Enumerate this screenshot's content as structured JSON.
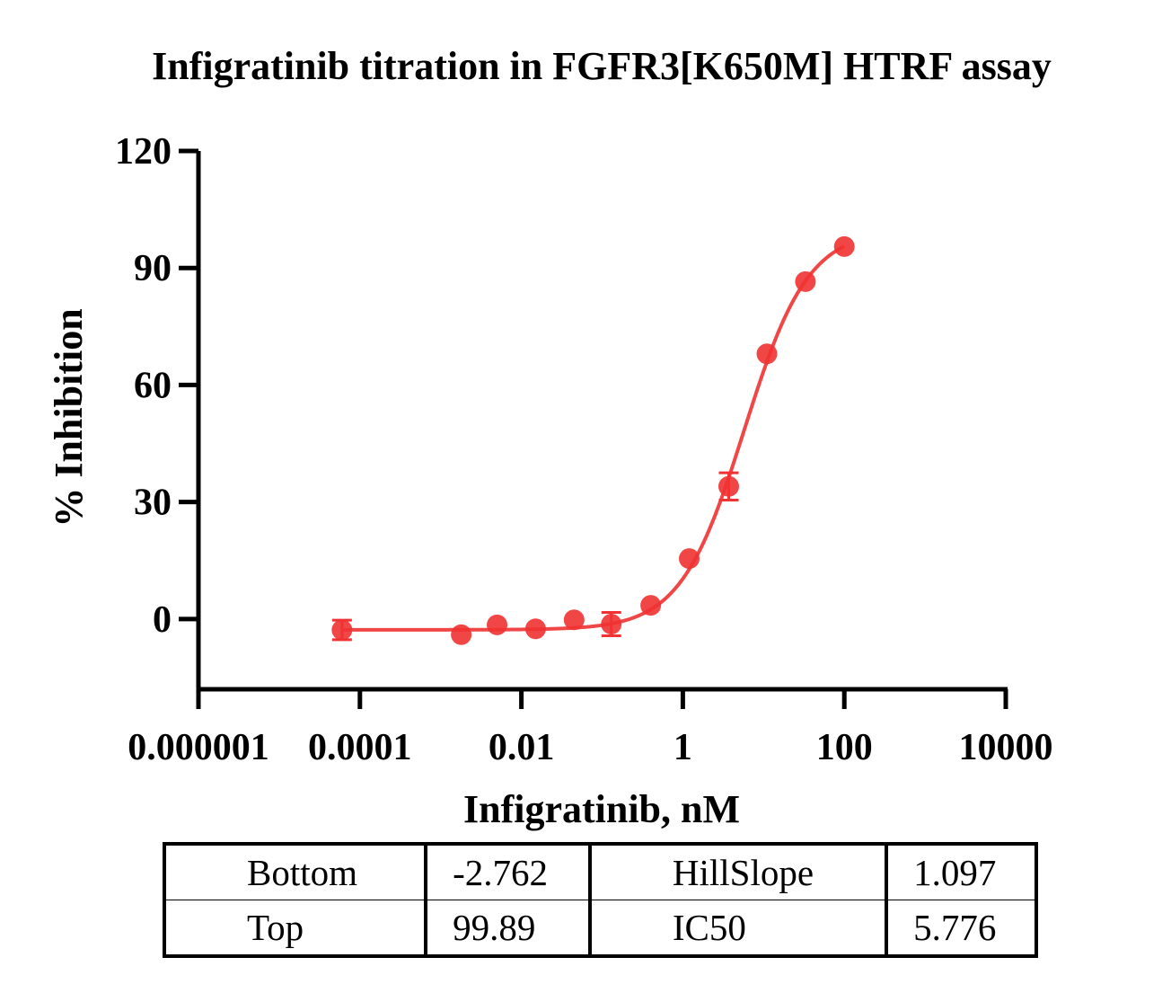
{
  "chart_data": {
    "type": "scatter",
    "title": "Infigratinib titration in FGFR3[K650M] HTRF assay",
    "xlabel": "Infigratinib, nM",
    "ylabel": "% Inhibition",
    "x_scale": "log",
    "xlim": [
      1e-06,
      10000
    ],
    "ylim": [
      -18,
      120
    ],
    "x_ticks": [
      1e-06,
      0.0001,
      0.01,
      1,
      100,
      10000
    ],
    "x_tick_labels": [
      "0.000001",
      "0.0001",
      "0.01",
      "1",
      "100",
      "10000"
    ],
    "y_ticks": [
      0,
      30,
      60,
      90,
      120
    ],
    "y_tick_labels": [
      "0",
      "30",
      "60",
      "90",
      "120"
    ],
    "color": "#f03232",
    "points": [
      {
        "x": 6e-05,
        "y": -2.8,
        "err": 2.5
      },
      {
        "x": 0.0018,
        "y": -4.0,
        "err": 0
      },
      {
        "x": 0.005,
        "y": -1.5,
        "err": 0
      },
      {
        "x": 0.015,
        "y": -2.5,
        "err": 0
      },
      {
        "x": 0.045,
        "y": -0.2,
        "err": 0
      },
      {
        "x": 0.13,
        "y": -1.3,
        "err": 3.0
      },
      {
        "x": 0.4,
        "y": 3.5,
        "err": 0
      },
      {
        "x": 1.2,
        "y": 15.5,
        "err": 0
      },
      {
        "x": 3.7,
        "y": 34.0,
        "err": 3.5
      },
      {
        "x": 11,
        "y": 68.0,
        "err": 0
      },
      {
        "x": 33,
        "y": 86.5,
        "err": 0
      },
      {
        "x": 100,
        "y": 95.5,
        "err": 0
      }
    ],
    "fit": {
      "model": "four-parameter logistic",
      "bottom": -2.762,
      "top": 99.89,
      "hillslope": 1.097,
      "ic50": 5.776,
      "x_range": [
        6e-05,
        100
      ]
    }
  },
  "params_table": {
    "rows": [
      [
        "Bottom",
        "-2.762",
        "HillSlope",
        "1.097"
      ],
      [
        "Top",
        "99.89",
        "IC50",
        "5.776"
      ]
    ]
  }
}
